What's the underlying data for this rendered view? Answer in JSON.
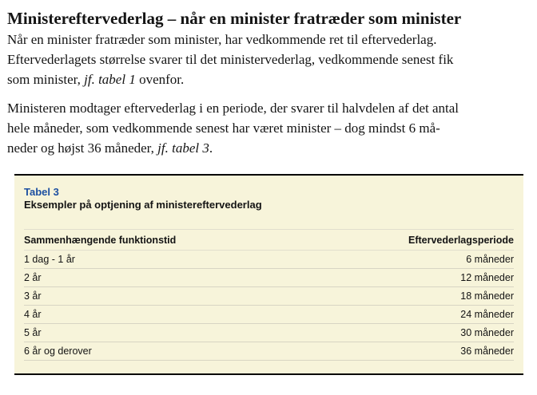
{
  "page": {
    "heading": "Ministereftervederlag – når en minister fratræder som minister"
  },
  "paragraph1": {
    "line1": "Når en minister fratræder som minister, har vedkommende ret til eftervederlag.",
    "line2": "Eftervederlagets størrelse svarer til det ministervederlag, vedkommende senest fik",
    "line3_pre": "som minister, ",
    "line3_italic": "jf. tabel 1",
    "line3_post": " ovenfor."
  },
  "paragraph2": {
    "line1": "Ministeren modtager eftervederlag i en periode, der svarer til halvdelen af det antal",
    "line2": "hele måneder, som vedkommende senest har været minister – dog mindst 6 må-",
    "line3_pre": "neder og højst 36 måneder, ",
    "line3_italic": "jf. tabel 3",
    "line3_post": "."
  },
  "table": {
    "label": "Tabel 3",
    "title": "Eksempler på optjening af ministereftervederlag",
    "columns": [
      "Sammenhængende funktionstid",
      "Eftervederlagsperiode"
    ],
    "rows": [
      [
        "1 dag - 1 år",
        "6 måneder"
      ],
      [
        "2 år",
        "12 måneder"
      ],
      [
        "3 år",
        "18 måneder"
      ],
      [
        "4 år",
        "24 måneder"
      ],
      [
        "5 år",
        "30 måneder"
      ],
      [
        "6 år og derover",
        "36 måneder"
      ]
    ]
  },
  "colors": {
    "table_background": "#f7f4da",
    "table_label_blue": "#1c4fa1",
    "row_separator": "#d8d5c3",
    "header_separator": "#e2dfcd",
    "box_border": "#000000",
    "text_color": "#141414"
  }
}
